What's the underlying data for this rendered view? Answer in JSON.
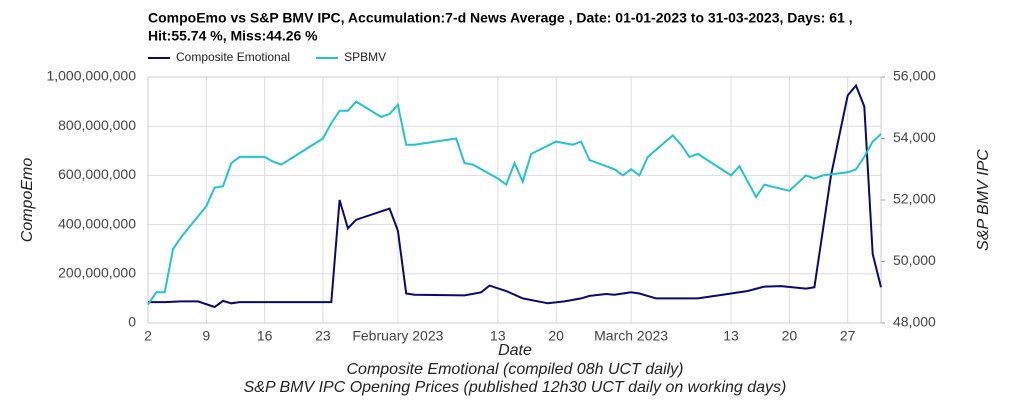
{
  "chart_data": {
    "type": "line",
    "title": "CompoEmo vs S&P BMV IPC, Accumulation:7-d News Average , Date: 01-01-2023 to 31-03-2023, Days: 61 ,",
    "subtitle": "Hit:55.74 %, Miss:44.26 %",
    "xlabel": "Date",
    "ylabel": "CompoEmo",
    "y2label": "S&P BMV IPC",
    "notes": [
      "Composite Emotional (compiled 08h UCT daily)",
      "S&P BMV IPC Opening Prices (published 12h30 UCT daily on working days)"
    ],
    "grid": true,
    "legend": "top-left",
    "xlim": [
      "2023-01-02",
      "2023-03-31"
    ],
    "xticks": [
      {
        "value": "2023-01-02",
        "label": "2"
      },
      {
        "value": "2023-01-09",
        "label": "9"
      },
      {
        "value": "2023-01-16",
        "label": "16"
      },
      {
        "value": "2023-01-23",
        "label": "23"
      },
      {
        "value": "2023-02-01",
        "label": "February 2023"
      },
      {
        "value": "2023-02-13",
        "label": "13"
      },
      {
        "value": "2023-02-20",
        "label": "20"
      },
      {
        "value": "2023-03-01",
        "label": "March 2023"
      },
      {
        "value": "2023-03-13",
        "label": "13"
      },
      {
        "value": "2023-03-20",
        "label": "20"
      },
      {
        "value": "2023-03-27",
        "label": "27"
      }
    ],
    "ylim": [
      0,
      1000000000
    ],
    "yticks": [
      0,
      {
        "value": 200000000,
        "label": "200,000,000"
      },
      {
        "value": 400000000,
        "label": "400,000,000"
      },
      {
        "value": 600000000,
        "label": "600,000,000"
      },
      {
        "value": 800000000,
        "label": "800,000,000"
      },
      {
        "value": 1000000000,
        "label": "1,000,000,000"
      }
    ],
    "y2lim": [
      48000,
      56000
    ],
    "y2ticks": [
      {
        "value": 48000,
        "label": "48,000"
      },
      {
        "value": 50000,
        "label": "50,000"
      },
      {
        "value": 52000,
        "label": "52,000"
      },
      {
        "value": 54000,
        "label": "54,000"
      },
      {
        "value": 56000,
        "label": "56,000"
      }
    ],
    "series": [
      {
        "name": "Composite Emotional",
        "color": "#0a0a6e",
        "axis": "y",
        "x": [
          "2023-01-02",
          "2023-01-04",
          "2023-01-06",
          "2023-01-08",
          "2023-01-10",
          "2023-01-11",
          "2023-01-12",
          "2023-01-13",
          "2023-01-20",
          "2023-01-24",
          "2023-01-25",
          "2023-01-26",
          "2023-01-27",
          "2023-01-31",
          "2023-02-01",
          "2023-02-02",
          "2023-02-03",
          "2023-02-09",
          "2023-02-11",
          "2023-02-12",
          "2023-02-14",
          "2023-02-16",
          "2023-02-19",
          "2023-02-21",
          "2023-02-23",
          "2023-02-24",
          "2023-02-26",
          "2023-02-27",
          "2023-03-01",
          "2023-03-02",
          "2023-03-04",
          "2023-03-09",
          "2023-03-12",
          "2023-03-15",
          "2023-03-17",
          "2023-03-19",
          "2023-03-22",
          "2023-03-23",
          "2023-03-25",
          "2023-03-27",
          "2023-03-28",
          "2023-03-29",
          "2023-03-30",
          "2023-03-31"
        ],
        "values": [
          85000000,
          85000000,
          88000000,
          88000000,
          65000000,
          90000000,
          80000000,
          85000000,
          85000000,
          85000000,
          500000000,
          385000000,
          420000000,
          465000000,
          375000000,
          120000000,
          115000000,
          112000000,
          125000000,
          152000000,
          130000000,
          100000000,
          80000000,
          88000000,
          100000000,
          110000000,
          118000000,
          115000000,
          125000000,
          120000000,
          100000000,
          100000000,
          115000000,
          130000000,
          148000000,
          150000000,
          140000000,
          145000000,
          600000000,
          925000000,
          965000000,
          880000000,
          280000000,
          145000000
        ]
      },
      {
        "name": "SPBMV",
        "color": "#22c5c8",
        "axis": "y2",
        "x": [
          "2023-01-02",
          "2023-01-03",
          "2023-01-04",
          "2023-01-05",
          "2023-01-06",
          "2023-01-09",
          "2023-01-10",
          "2023-01-11",
          "2023-01-12",
          "2023-01-13",
          "2023-01-16",
          "2023-01-17",
          "2023-01-18",
          "2023-01-23",
          "2023-01-24",
          "2023-01-25",
          "2023-01-26",
          "2023-01-27",
          "2023-01-30",
          "2023-01-31",
          "2023-02-01",
          "2023-02-02",
          "2023-02-03",
          "2023-02-08",
          "2023-02-09",
          "2023-02-10",
          "2023-02-13",
          "2023-02-14",
          "2023-02-15",
          "2023-02-16",
          "2023-02-17",
          "2023-02-20",
          "2023-02-22",
          "2023-02-23",
          "2023-02-24",
          "2023-02-27",
          "2023-02-28",
          "2023-03-01",
          "2023-03-02",
          "2023-03-03",
          "2023-03-06",
          "2023-03-07",
          "2023-03-08",
          "2023-03-09",
          "2023-03-13",
          "2023-03-14",
          "2023-03-15",
          "2023-03-16",
          "2023-03-17",
          "2023-03-20",
          "2023-03-22",
          "2023-03-23",
          "2023-03-24",
          "2023-03-27",
          "2023-03-28",
          "2023-03-29",
          "2023-03-30",
          "2023-03-31"
        ],
        "values": [
          48600,
          49000,
          49000,
          50400,
          50800,
          51800,
          52400,
          52450,
          53200,
          53400,
          53400,
          53250,
          53150,
          54000,
          54500,
          54900,
          54900,
          55200,
          54700,
          54800,
          55100,
          53800,
          53800,
          54000,
          53200,
          53150,
          52700,
          52500,
          53200,
          52600,
          53500,
          53900,
          53800,
          53900,
          53300,
          53000,
          52800,
          53000,
          52800,
          53400,
          54100,
          53800,
          53400,
          53500,
          52800,
          53100,
          52600,
          52100,
          52500,
          52300,
          52800,
          52700,
          52800,
          52900,
          53000,
          53400,
          53900,
          54150
        ]
      }
    ]
  }
}
